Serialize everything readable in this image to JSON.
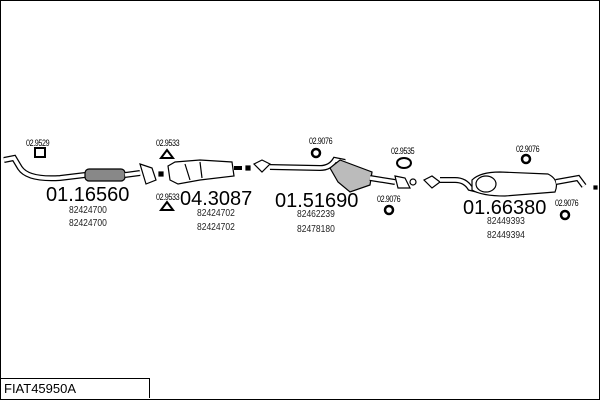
{
  "title": "FIAT45950A",
  "parts": [
    {
      "number": "01.16560",
      "oem": [
        "82424700",
        "82424700"
      ]
    },
    {
      "number": "04.3087",
      "oem": [
        "82424702",
        "82424702"
      ]
    },
    {
      "number": "01.51690",
      "oem": [
        "82462239",
        "82478180"
      ]
    },
    {
      "number": "01.66380",
      "oem": [
        "82449393",
        "82449394"
      ]
    }
  ],
  "accessories": [
    "02.9529",
    "02.9533",
    "02.9533",
    "02.9076",
    "02.9535",
    "02.9076",
    "02.9076",
    "02.9076"
  ]
}
